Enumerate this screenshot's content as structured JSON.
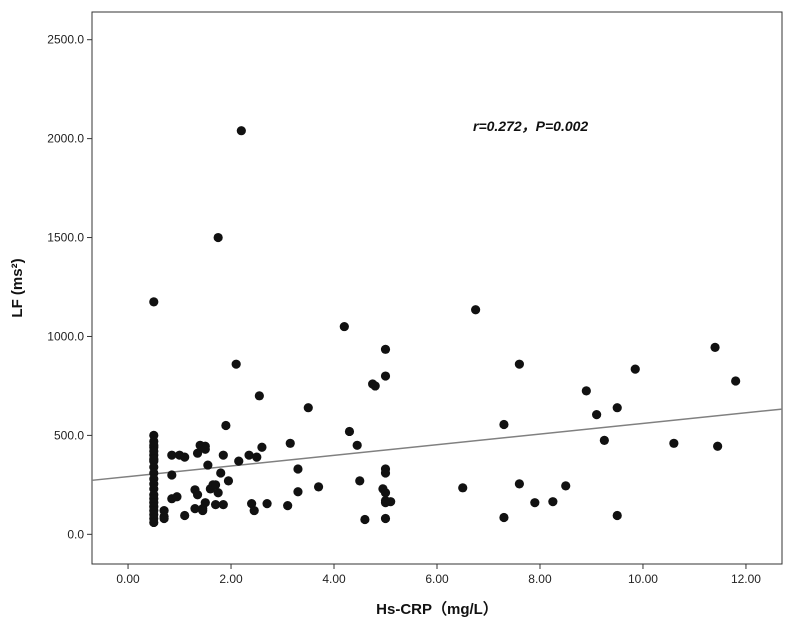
{
  "chart_data": {
    "type": "scatter",
    "title": "",
    "xlabel": "Hs-CRP（mg/L）",
    "ylabel": "LF (ms²)",
    "xlim": [
      -0.7,
      12.7
    ],
    "ylim": [
      -150,
      2640
    ],
    "x_ticks": [
      0,
      2,
      4,
      6,
      8,
      10,
      12
    ],
    "x_tick_labels": [
      "0.00",
      "2.00",
      "4.00",
      "6.00",
      "8.00",
      "10.00",
      "12.00"
    ],
    "y_ticks": [
      0,
      500,
      1000,
      1500,
      2000,
      2500
    ],
    "y_tick_labels": [
      "0.0",
      "500.0",
      "1000.0",
      "1500.0",
      "2000.0",
      "2500.0"
    ],
    "annotation": "r=0.272，P=0.002",
    "grid": false,
    "colors": {
      "points": "#111111",
      "fit_line": "#808080",
      "frame": "#333333"
    },
    "fit_line": {
      "x": [
        -0.7,
        12.7
      ],
      "y": [
        273,
        633
      ]
    },
    "points": {
      "x": [
        0.5,
        0.5,
        0.5,
        0.5,
        0.5,
        0.5,
        0.5,
        0.5,
        0.5,
        0.5,
        0.5,
        0.5,
        0.5,
        0.5,
        0.5,
        0.5,
        0.5,
        0.5,
        0.5,
        0.5,
        0.5,
        0.5,
        0.7,
        0.7,
        0.7,
        0.85,
        0.85,
        0.85,
        0.95,
        1.0,
        1.1,
        1.1,
        1.3,
        1.3,
        1.35,
        1.4,
        1.45,
        1.45,
        1.5,
        1.5,
        1.5,
        1.55,
        1.6,
        1.6,
        1.65,
        1.7,
        1.7,
        1.75,
        1.75,
        1.8,
        1.85,
        1.85,
        1.9,
        1.95,
        2.1,
        2.15,
        2.2,
        2.35,
        2.4,
        2.45,
        2.5,
        2.55,
        2.6,
        2.7,
        3.1,
        3.15,
        3.3,
        3.3,
        3.5,
        3.7,
        4.2,
        4.3,
        4.45,
        4.5,
        4.6,
        4.75,
        4.8,
        4.95,
        5.0,
        5.0,
        5.0,
        5.0,
        5.0,
        5.0,
        5.0,
        5.0,
        5.1,
        6.5,
        6.75,
        7.3,
        7.3,
        7.6,
        7.6,
        7.9,
        8.25,
        8.5,
        8.9,
        9.1,
        9.25,
        9.5,
        9.5,
        9.85,
        10.6,
        11.4,
        11.45,
        11.8,
        1.45,
        1.35
      ],
      "y": [
        1175,
        500,
        470,
        440,
        400,
        370,
        340,
        310,
        280,
        255,
        230,
        200,
        180,
        160,
        140,
        120,
        100,
        80,
        60,
        450,
        420,
        380,
        120,
        90,
        80,
        300,
        400,
        180,
        190,
        400,
        390,
        95,
        130,
        225,
        410,
        450,
        440,
        130,
        445,
        160,
        430,
        350,
        230,
        230,
        250,
        250,
        150,
        1500,
        210,
        310,
        400,
        150,
        550,
        270,
        860,
        370,
        2040,
        400,
        155,
        120,
        390,
        700,
        440,
        155,
        145,
        460,
        330,
        215,
        640,
        240,
        1050,
        520,
        450,
        270,
        75,
        760,
        750,
        230,
        935,
        800,
        330,
        310,
        210,
        170,
        160,
        80,
        165,
        235,
        1135,
        555,
        85,
        860,
        255,
        160,
        165,
        245,
        725,
        605,
        475,
        640,
        95,
        835,
        460,
        945,
        445,
        775,
        120,
        200
      ]
    }
  }
}
